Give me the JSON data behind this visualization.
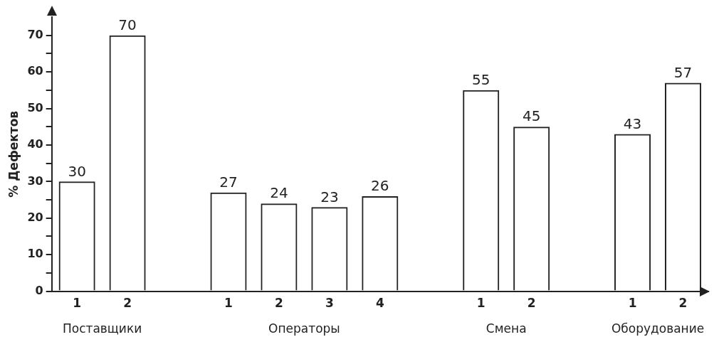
{
  "chart_data": {
    "type": "bar",
    "ylabel": "% Дефектов",
    "categories": [
      "1",
      "2",
      null,
      "1",
      "2",
      "3",
      "4",
      null,
      "1",
      "2",
      null,
      "1",
      "2"
    ],
    "values": [
      30,
      70,
      null,
      27,
      24,
      23,
      26,
      null,
      55,
      45,
      null,
      43,
      57
    ],
    "color": "#222222",
    "ylim": [
      0,
      75
    ],
    "yticks": [
      0,
      {
        "value": 5,
        "label": null
      },
      10,
      {
        "value": 15,
        "label": null
      },
      20,
      {
        "value": 25,
        "label": null
      },
      30,
      {
        "value": 35,
        "label": null
      },
      40,
      {
        "value": 45,
        "label": null
      },
      50,
      {
        "value": 55,
        "label": null
      },
      60,
      {
        "value": 65,
        "label": null
      },
      70
    ],
    "grid": false,
    "legend": false,
    "data_labels": true,
    "annotations": [
      "Поставщики",
      "Операторы",
      "Смена",
      "Оборудование"
    ]
  }
}
